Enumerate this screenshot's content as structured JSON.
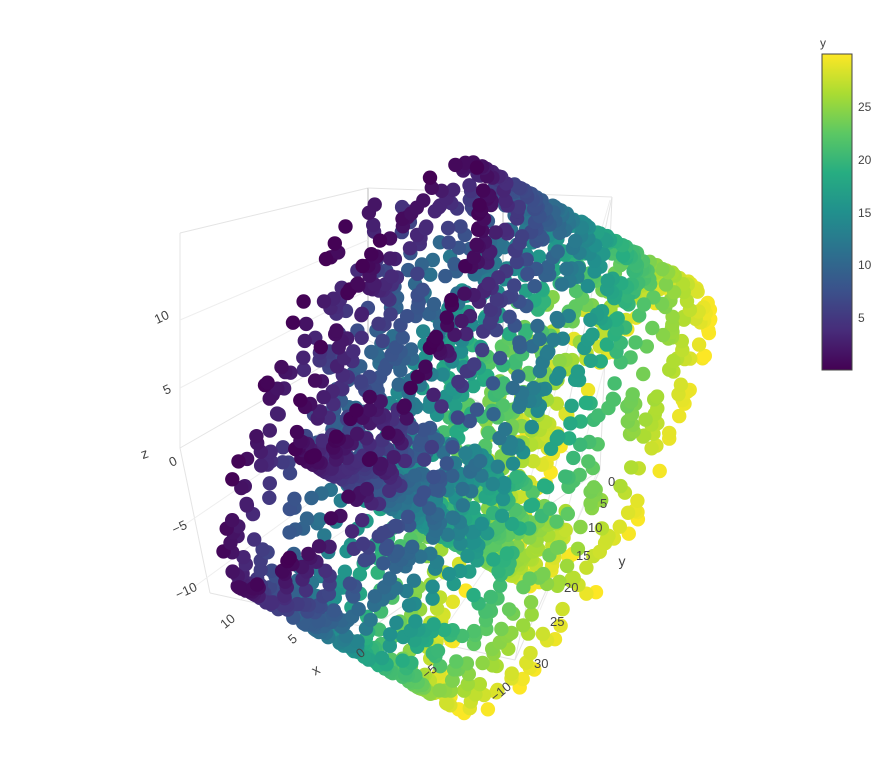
{
  "chart_data": {
    "type": "scatter3d",
    "title": "",
    "xlabel": "x",
    "ylabel": "y",
    "zlabel": "z",
    "color_by": "y",
    "colorscale": "viridis",
    "colorscale_stops": [
      "#440154",
      "#472c7a",
      "#3b518b",
      "#2c718e",
      "#21908d",
      "#27ad81",
      "#5cc863",
      "#aadc32",
      "#fde725"
    ],
    "point_count": 2400,
    "xlim": [
      -10,
      13
    ],
    "ylim": [
      0,
      30
    ],
    "zlim": [
      -11,
      13
    ],
    "x_ticks": [
      "10",
      "5",
      "0",
      "−5",
      "−10"
    ],
    "y_ticks": [
      "0",
      "5",
      "10",
      "15",
      "20",
      "25",
      "30"
    ],
    "z_ticks": [
      "10",
      "5",
      "0",
      "−5",
      "−10"
    ],
    "colorbar": {
      "title": "y",
      "range": [
        0,
        30
      ],
      "ticks": [
        "25",
        "20",
        "15",
        "10",
        "5"
      ]
    },
    "grid": true,
    "legend": "none",
    "shape": "swiss roll",
    "marker_opacity": 1
  }
}
